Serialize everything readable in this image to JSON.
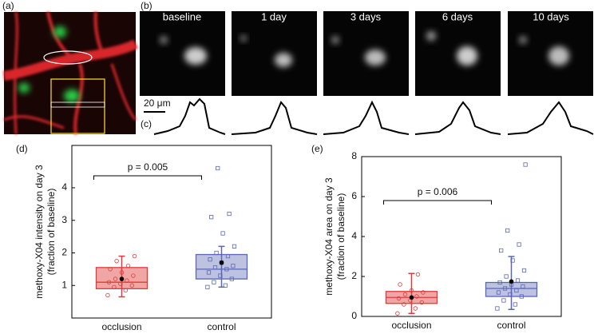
{
  "panels": {
    "a": "(a)",
    "b": "(b)",
    "c": "(c)",
    "d": "(d)",
    "e": "(e)"
  },
  "timepoints": [
    "baseline",
    "1 day",
    "3 days",
    "6 days",
    "10 days"
  ],
  "scale_bar": "20 μm",
  "chart_data": [
    {
      "type": "box",
      "ylabel": [
        "methoxy-X04 intensity on day 3",
        "(fraction of baseline)"
      ],
      "categories": [
        "occlusion",
        "control"
      ],
      "colors": [
        "#e03a3a",
        "#5b66b5"
      ],
      "ylim": [
        0,
        5.3
      ],
      "yticks": [
        1,
        2,
        3,
        4
      ],
      "annotation": "p = 0.005",
      "boxes": [
        {
          "whisker_low": 0.65,
          "q1": 0.9,
          "median": 1.1,
          "q3": 1.55,
          "whisker_high": 1.9,
          "mean": 1.2,
          "points": [
            0.7,
            0.85,
            0.95,
            1.0,
            1.05,
            1.1,
            1.15,
            1.2,
            1.3,
            1.4,
            1.5,
            1.6,
            1.75,
            1.9
          ]
        },
        {
          "whisker_low": 0.95,
          "q1": 1.2,
          "median": 1.5,
          "q3": 1.95,
          "whisker_high": 2.2,
          "mean": 1.7,
          "points": [
            0.95,
            1.0,
            1.1,
            1.2,
            1.3,
            1.4,
            1.5,
            1.55,
            1.6,
            1.7,
            1.8,
            1.9,
            2.0,
            2.2,
            2.6,
            3.1,
            3.2,
            4.6
          ]
        }
      ]
    },
    {
      "type": "box",
      "ylabel": [
        "methoxy-X04 area on day 3",
        "(fraction of baseline)"
      ],
      "categories": [
        "occlusion",
        "control"
      ],
      "colors": [
        "#e03a3a",
        "#5b66b5"
      ],
      "ylim": [
        0,
        8
      ],
      "yticks": [
        0,
        2,
        4,
        6,
        8
      ],
      "annotation": "p = 0.006",
      "boxes": [
        {
          "whisker_low": 0.15,
          "q1": 0.65,
          "median": 0.95,
          "q3": 1.25,
          "whisker_high": 2.15,
          "mean": 0.95,
          "points": [
            0.15,
            0.4,
            0.6,
            0.7,
            0.8,
            0.9,
            1.0,
            1.1,
            1.2,
            1.3,
            1.6,
            2.1
          ]
        },
        {
          "whisker_low": 0.35,
          "q1": 1.0,
          "median": 1.4,
          "q3": 1.7,
          "whisker_high": 3.0,
          "mean": 1.75,
          "points": [
            0.4,
            0.6,
            0.8,
            1.0,
            1.1,
            1.2,
            1.3,
            1.4,
            1.5,
            1.6,
            1.7,
            1.8,
            2.0,
            2.3,
            2.8,
            3.3,
            3.6,
            4.3,
            7.6
          ]
        }
      ]
    }
  ]
}
